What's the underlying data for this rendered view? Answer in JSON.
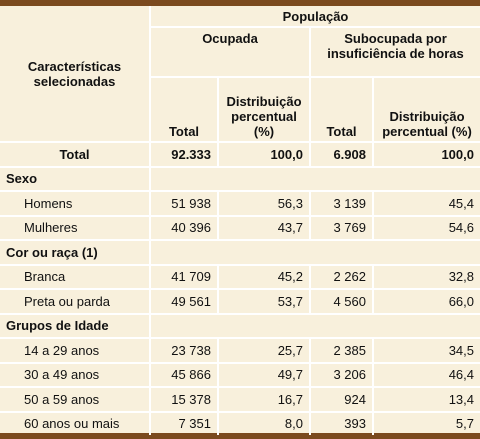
{
  "table": {
    "header": {
      "characteristic": "Características selecionadas",
      "group": "População",
      "ocupada": "Ocupada",
      "subocupada": "Subocupada por insuficiência de horas",
      "columns": [
        "Total",
        "Distribuição percentual (%)",
        "Total",
        "Distribuição percentual (%)"
      ]
    },
    "total": [
      "Total",
      "92.333",
      "100,0",
      "6.908",
      "100,0"
    ],
    "sections": [
      {
        "title": "Sexo",
        "rows": [
          [
            "Homens",
            "51 938",
            "56,3",
            "3 139",
            "45,4"
          ],
          [
            "Mulheres",
            "40 396",
            "43,7",
            "3 769",
            "54,6"
          ]
        ]
      },
      {
        "title": "Cor ou raça (1)",
        "rows": [
          [
            "Branca",
            "41 709",
            "45,2",
            "2 262",
            "32,8"
          ],
          [
            "Preta ou parda",
            "49 561",
            "53,7",
            "4 560",
            "66,0"
          ]
        ]
      },
      {
        "title": "Grupos de Idade",
        "rows": [
          [
            "14 a 29 anos",
            "23 738",
            "25,7",
            "2 385",
            "34,5"
          ],
          [
            "30 a 49 anos",
            "45 866",
            "49,7",
            "3 206",
            "46,4"
          ],
          [
            "50 a 59 anos",
            "15 378",
            "16,7",
            "924",
            "13,4"
          ],
          [
            "60 anos ou mais",
            "7 351",
            "8,0",
            "393",
            "5,7"
          ]
        ]
      }
    ]
  }
}
